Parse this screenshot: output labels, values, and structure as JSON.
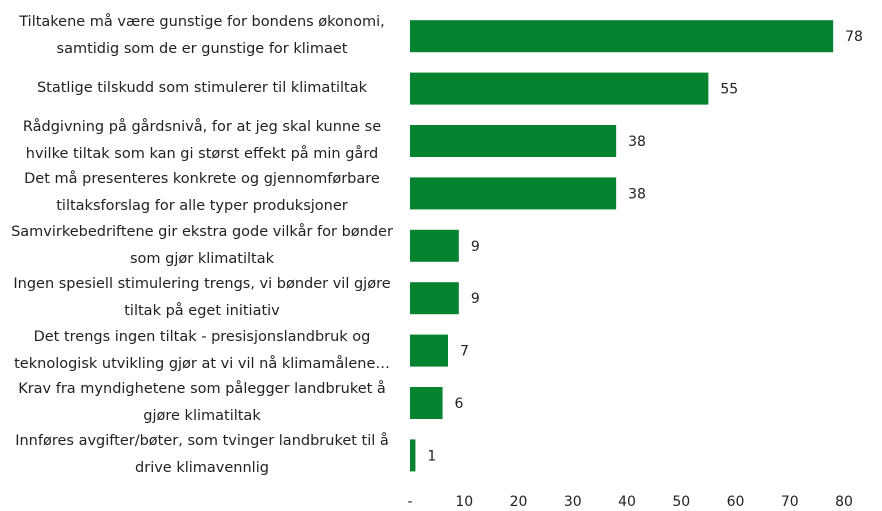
{
  "chart_data": {
    "type": "bar",
    "orientation": "horizontal",
    "categories": [
      "Tiltakene må være gunstige for bondens økonomi, samtidig som de er gunstige for klimaet",
      "Statlige tilskudd som stimulerer til klimatiltak",
      "Rådgivning på gårdsnivå, for at jeg skal kunne se hvilke tiltak som kan gi størst effekt på min gård",
      "Det må presenteres konkrete og gjennomførbare tiltaksforslag for alle typer produksjoner",
      "Samvirkebedriftene gir ekstra gode vilkår for bønder som gjør klimatiltak",
      "Ingen spesiell stimulering trengs, vi bønder vil gjøre tiltak på eget initiativ",
      "Det trengs ingen tiltak - presisjonslandbruk og teknologisk utvikling gjør at vi vil nå klimamålene…",
      "Krav fra myndighetene som pålegger landbruket å gjøre klimatiltak",
      "Innføres avgifter/bøter, som tvinger landbruket til å drive klimavennlig"
    ],
    "values": [
      78,
      55,
      38,
      38,
      9,
      9,
      7,
      6,
      1
    ],
    "color": "#068330",
    "xlim": [
      0,
      80
    ],
    "xticks": [
      {
        "value": 0,
        "label": "-"
      },
      10,
      20,
      30,
      40,
      50,
      60,
      70,
      80
    ],
    "grid": false
  }
}
